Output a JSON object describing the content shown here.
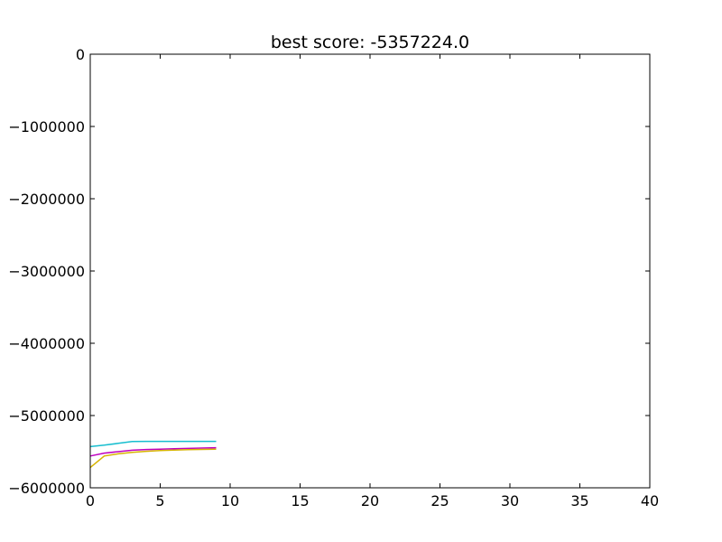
{
  "chart_data": {
    "type": "line",
    "title": "best score: -5357224.0",
    "xlabel": "",
    "ylabel": "",
    "xlim": [
      0,
      40
    ],
    "ylim": [
      -6000000,
      0
    ],
    "grid": false,
    "legend": "none",
    "x_ticks": [
      0,
      5,
      10,
      15,
      20,
      25,
      30,
      35,
      40
    ],
    "x_tick_labels": [
      "0",
      "5",
      "10",
      "15",
      "20",
      "25",
      "30",
      "35",
      "40"
    ],
    "y_ticks": [
      0,
      -1000000,
      -2000000,
      -3000000,
      -4000000,
      -5000000,
      -6000000
    ],
    "y_tick_labels": [
      "0",
      "−1000000",
      "−2000000",
      "−3000000",
      "−4000000",
      "−5000000",
      "−6000000"
    ],
    "series": [
      {
        "name": "best",
        "color": "#17becf",
        "x": [
          0,
          1,
          2,
          3,
          4,
          5,
          6,
          7,
          8,
          9
        ],
        "y": [
          -5430000,
          -5410000,
          -5385000,
          -5360000,
          -5358000,
          -5357500,
          -5357300,
          -5357224,
          -5357224,
          -5357224
        ]
      },
      {
        "name": "mean",
        "color": "#bf00bf",
        "x": [
          0,
          1,
          2,
          3,
          4,
          5,
          6,
          7,
          8,
          9
        ],
        "y": [
          -5560000,
          -5520000,
          -5500000,
          -5480000,
          -5470000,
          -5465000,
          -5460000,
          -5455000,
          -5450000,
          -5445000
        ]
      },
      {
        "name": "worst",
        "color": "#d6b300",
        "x": [
          0,
          1,
          2,
          3,
          4,
          5,
          6,
          7,
          8,
          9
        ],
        "y": [
          -5720000,
          -5560000,
          -5530000,
          -5510000,
          -5495000,
          -5485000,
          -5478000,
          -5472000,
          -5468000,
          -5465000
        ]
      }
    ]
  }
}
